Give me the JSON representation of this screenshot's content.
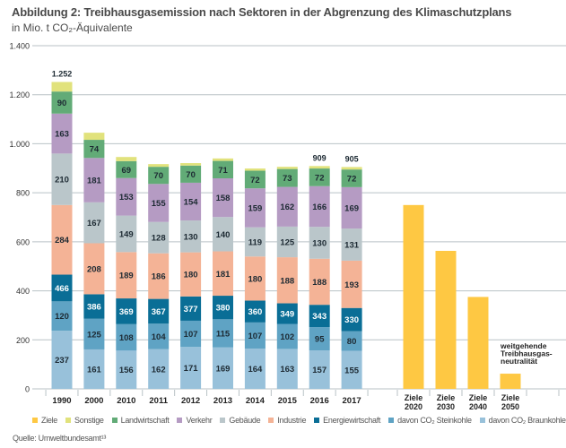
{
  "title": "Abbildung 2: Treibhausgasemission nach Sektoren in der Abgrenzung des Klimaschutzplans",
  "subtitle": "in Mio. t CO₂-Äquivalente",
  "source": "Quelle: Umweltbundesamt¹³",
  "chart_data": {
    "type": "bar",
    "stacked": true,
    "title": "Abbildung 2: Treibhausgasemission nach Sektoren in der Abgrenzung des Klimaschutzplans",
    "ylabel": "in Mio. t CO₂-Äquivalente",
    "xlabel": "",
    "ylim": [
      0,
      1400
    ],
    "yticks": [
      0,
      200,
      400,
      600,
      800,
      1000,
      1200,
      1400
    ],
    "ytick_labels": [
      "0",
      "200",
      "400",
      "600",
      "800",
      "1.000",
      "1.200",
      "1.400"
    ],
    "grid": true,
    "legend_position": "bottom",
    "categories": [
      "1990",
      "2000",
      "2010",
      "2011",
      "2012",
      "2013",
      "2014",
      "2015",
      "2016",
      "2017"
    ],
    "series": [
      {
        "name": "davon CO₂ Braunkohle",
        "color": "#98c1da",
        "values": [
          237,
          161,
          156,
          162,
          171,
          169,
          164,
          163,
          157,
          155
        ]
      },
      {
        "name": "davon CO₂ Steinkohle",
        "color": "#5fa3c4",
        "values": [
          120,
          125,
          108,
          104,
          107,
          115,
          107,
          102,
          95,
          80
        ]
      },
      {
        "name": "Energiewirtschaft",
        "color": "#0a6e96",
        "values": [
          466,
          386,
          369,
          367,
          377,
          380,
          360,
          349,
          343,
          330
        ],
        "includes": [
          "davon CO₂ Braunkohle",
          "davon CO₂ Steinkohle"
        ]
      },
      {
        "name": "Industrie",
        "color": "#f4b396",
        "values": [
          284,
          208,
          189,
          186,
          180,
          181,
          180,
          188,
          188,
          193
        ]
      },
      {
        "name": "Gebäude",
        "color": "#bac6ca",
        "values": [
          210,
          167,
          149,
          128,
          130,
          140,
          119,
          125,
          130,
          131
        ]
      },
      {
        "name": "Verkehr",
        "color": "#b59bc3",
        "values": [
          163,
          181,
          153,
          155,
          154,
          158,
          159,
          162,
          166,
          169
        ]
      },
      {
        "name": "Landwirtschaft",
        "color": "#62ab77",
        "values": [
          90,
          74,
          69,
          70,
          70,
          71,
          72,
          73,
          72,
          72
        ]
      },
      {
        "name": "Sonstige",
        "color": "#e1e27c",
        "values": [
          39,
          29,
          17,
          11,
          10,
          10,
          9,
          9,
          10,
          10
        ]
      }
    ],
    "totals_labeled": {
      "1990": "1.252",
      "2016": "909",
      "2017": "905"
    },
    "targets": {
      "name": "Ziele",
      "color": "#fec843",
      "categories": [
        "Ziele 2020",
        "Ziele 2030",
        "Ziele 2040",
        "Ziele 2050"
      ],
      "values": [
        750,
        563,
        375,
        62
      ],
      "annotation": "weitgehende Treibhausgas-neutralität"
    }
  },
  "legend": [
    {
      "label": "Ziele",
      "color": "#fec843"
    },
    {
      "label": "Sonstige",
      "color": "#e1e27c"
    },
    {
      "label": "Landwirtschaft",
      "color": "#62ab77"
    },
    {
      "label": "Verkehr",
      "color": "#b59bc3"
    },
    {
      "label": "Gebäude",
      "color": "#bac6ca"
    },
    {
      "label": "Industrie",
      "color": "#f4b396"
    },
    {
      "label": "Energiewirtschaft",
      "color": "#0a6e96"
    },
    {
      "label": "davon CO₂ Steinkohle",
      "color": "#5fa3c4"
    },
    {
      "label": "davon CO₂ Braunkohle",
      "color": "#98c1da"
    }
  ]
}
